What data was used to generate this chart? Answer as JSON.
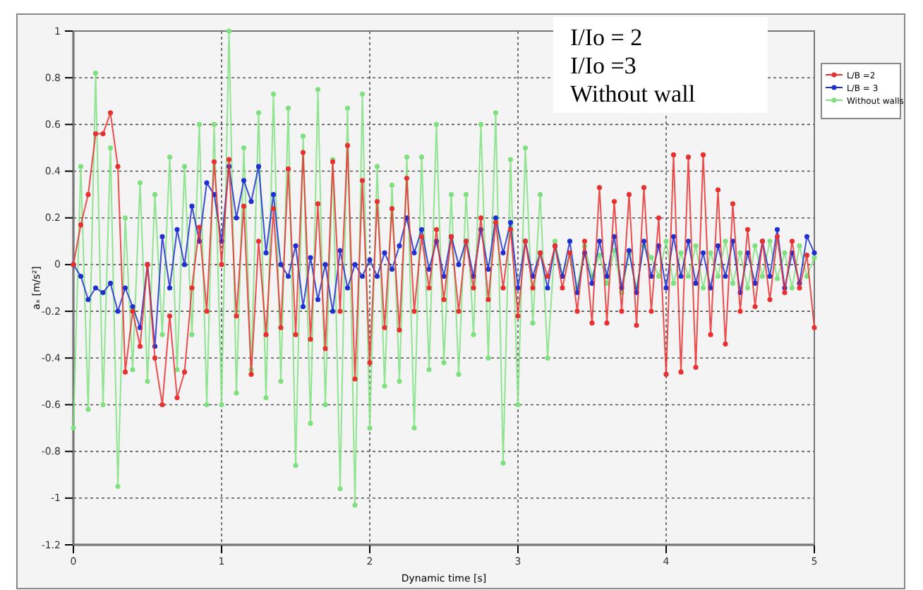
{
  "chart_data": {
    "type": "line",
    "xlabel": "Dynamic time [s]",
    "ylabel": "aₓ [m/s²]",
    "xlim": [
      0,
      5
    ],
    "ylim": [
      -1.2,
      1
    ],
    "xticks": [
      0,
      1,
      2,
      3,
      4,
      5
    ],
    "yticks": [
      -1.2,
      -1,
      -0.8,
      -0.6,
      -0.4,
      -0.2,
      0,
      0.2,
      0.4,
      0.6,
      0.8,
      1
    ],
    "grid": true,
    "legend": "right",
    "marker": "circle",
    "line_style": "solid",
    "annotations": [
      "I/Io = 2",
      "I/Io =3",
      "Without wall"
    ],
    "x": [
      0,
      0.05,
      0.1,
      0.15,
      0.2,
      0.25,
      0.3,
      0.35,
      0.4,
      0.45,
      0.5,
      0.55,
      0.6,
      0.65,
      0.7,
      0.75,
      0.8,
      0.85,
      0.9,
      0.95,
      1,
      1.05,
      1.1,
      1.15,
      1.2,
      1.25,
      1.3,
      1.35,
      1.4,
      1.45,
      1.5,
      1.55,
      1.6,
      1.65,
      1.7,
      1.75,
      1.8,
      1.85,
      1.9,
      1.95,
      2,
      2.05,
      2.1,
      2.15,
      2.2,
      2.25,
      2.3,
      2.35,
      2.4,
      2.45,
      2.5,
      2.55,
      2.6,
      2.65,
      2.7,
      2.75,
      2.8,
      2.85,
      2.9,
      2.95,
      3,
      3.05,
      3.1,
      3.15,
      3.2,
      3.25,
      3.3,
      3.35,
      3.4,
      3.45,
      3.5,
      3.55,
      3.6,
      3.65,
      3.7,
      3.75,
      3.8,
      3.85,
      3.9,
      3.95,
      4,
      4.05,
      4.1,
      4.15,
      4.2,
      4.25,
      4.3,
      4.35,
      4.4,
      4.45,
      4.5,
      4.55,
      4.6,
      4.65,
      4.7,
      4.75,
      4.8,
      4.85,
      4.9,
      4.95,
      5
    ],
    "series": [
      {
        "name": "L/B =2",
        "color": "#e83030",
        "values": [
          0,
          0.17,
          0.3,
          0.56,
          0.56,
          0.65,
          0.42,
          -0.46,
          -0.2,
          -0.35,
          0,
          -0.4,
          -0.6,
          -0.22,
          -0.57,
          -0.46,
          -0.1,
          0.16,
          -0.2,
          0.44,
          0,
          0.45,
          -0.22,
          0.25,
          -0.47,
          0.1,
          -0.3,
          0.24,
          -0.27,
          0.41,
          -0.3,
          0.48,
          -0.32,
          0.26,
          -0.36,
          0.44,
          -0.2,
          0.51,
          -0.49,
          0.36,
          -0.42,
          0.27,
          -0.27,
          0.24,
          -0.28,
          0.37,
          -0.2,
          0.12,
          -0.1,
          0.15,
          -0.15,
          0.12,
          -0.2,
          0.1,
          -0.1,
          0.2,
          -0.15,
          0.18,
          -0.1,
          0.15,
          -0.22,
          0.1,
          -0.1,
          0.05,
          -0.05,
          0.08,
          -0.1,
          0.05,
          -0.2,
          0.1,
          -0.25,
          0.33,
          -0.25,
          0.27,
          -0.2,
          0.3,
          -0.26,
          0.33,
          -0.2,
          0.2,
          -0.47,
          0.47,
          -0.46,
          0.46,
          -0.44,
          0.47,
          -0.3,
          0.32,
          -0.34,
          0.26,
          -0.2,
          0.15,
          -0.18,
          0.1,
          -0.15,
          0.12,
          -0.12,
          0.1,
          -0.1,
          0.04,
          -0.27
        ]
      },
      {
        "name": "L/B = 3",
        "color": "#1f2fd0",
        "values": [
          0,
          -0.05,
          -0.15,
          -0.1,
          -0.12,
          -0.08,
          -0.2,
          -0.1,
          -0.18,
          -0.27,
          0,
          -0.35,
          0.12,
          -0.1,
          0.15,
          0,
          0.25,
          0.1,
          0.35,
          0.3,
          0.1,
          0.42,
          0.2,
          0.36,
          0.27,
          0.42,
          0.05,
          0.3,
          0,
          -0.05,
          0.08,
          -0.18,
          0.03,
          -0.15,
          0,
          -0.2,
          0.06,
          -0.1,
          0,
          -0.05,
          0.02,
          -0.05,
          0.05,
          -0.02,
          0.08,
          0.2,
          0.05,
          0.15,
          -0.02,
          0.1,
          -0.05,
          0.12,
          0,
          0.1,
          -0.05,
          0.15,
          -0.02,
          0.2,
          0.05,
          0.18,
          -0.1,
          0.1,
          -0.05,
          0.05,
          -0.1,
          0.08,
          -0.05,
          0.1,
          -0.12,
          0.05,
          -0.08,
          0.1,
          -0.05,
          0.12,
          -0.1,
          0.06,
          -0.12,
          0.1,
          -0.05,
          0.08,
          -0.1,
          0.12,
          -0.05,
          0.1,
          -0.08,
          0.05,
          -0.1,
          0.08,
          -0.05,
          0.1,
          -0.12,
          0.05,
          -0.08,
          0.1,
          -0.05,
          0.15,
          -0.1,
          0.05,
          -0.08,
          0.12,
          0.05
        ]
      },
      {
        "name": "Without walls",
        "color": "#7fe07f",
        "values": [
          -0.7,
          0.42,
          -0.62,
          0.82,
          -0.6,
          0.5,
          -0.95,
          0.2,
          -0.45,
          0.35,
          -0.5,
          0.3,
          -0.3,
          0.46,
          -0.45,
          0.42,
          -0.3,
          0.6,
          -0.6,
          0.6,
          -0.6,
          1,
          -0.55,
          0.5,
          -0.45,
          0.65,
          -0.57,
          0.73,
          -0.5,
          0.67,
          -0.86,
          0.55,
          -0.68,
          0.75,
          -0.6,
          0.45,
          -0.96,
          0.67,
          -1.03,
          0.73,
          -0.7,
          0.42,
          -0.52,
          0.34,
          -0.5,
          0.46,
          -0.7,
          0.46,
          -0.45,
          0.6,
          -0.42,
          0.3,
          -0.47,
          0.3,
          -0.3,
          0.6,
          -0.4,
          0.65,
          -0.85,
          0.45,
          -0.6,
          0.5,
          -0.25,
          0.3,
          -0.4,
          0.1,
          -0.05,
          0.05,
          -0.1,
          0.08,
          -0.05,
          0.04,
          -0.08,
          0.06,
          -0.12,
          0.05,
          -0.1,
          0.08,
          0.03,
          -0.05,
          0.1,
          -0.08,
          0.05,
          -0.05,
          0.08,
          -0.1,
          0.05,
          -0.05,
          0.1,
          -0.08,
          0.05,
          -0.1,
          0.08,
          -0.05,
          0.1,
          -0.06,
          0.05,
          -0.1,
          0.08,
          -0.05,
          0.03
        ]
      }
    ]
  }
}
